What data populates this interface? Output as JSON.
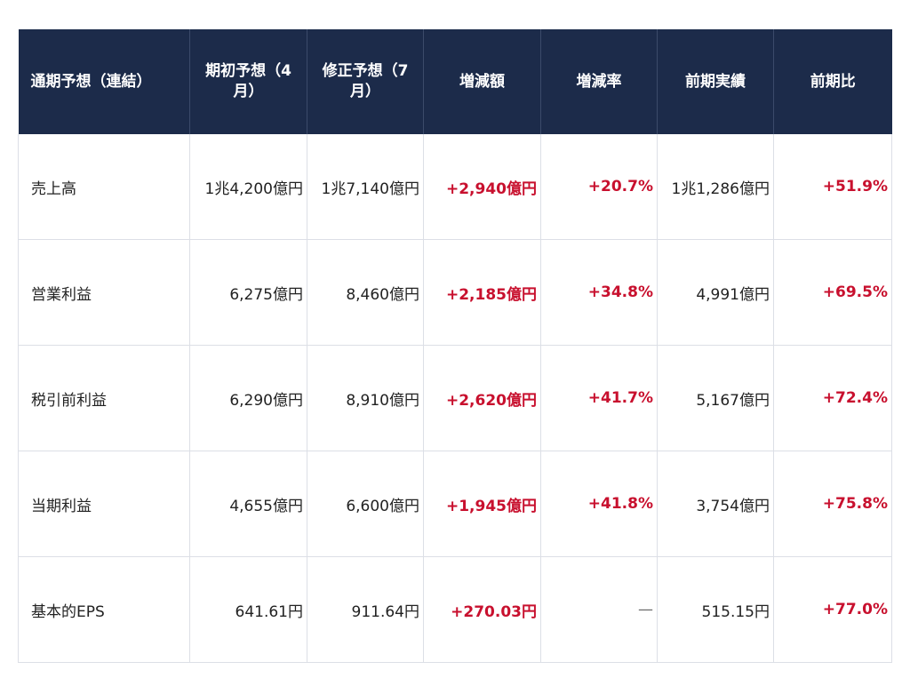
{
  "table": {
    "headers": [
      "通期予想（連結）",
      "期初予想（4月）",
      "修正予想（7月）",
      "増減額",
      "増減率",
      "前期実績",
      "前期比"
    ],
    "rows": [
      {
        "label": "売上高",
        "initial": "1兆4,200億円",
        "revised": "1兆7,140億円",
        "change": "+2,940億円",
        "rate": "+20.7%",
        "prev": "1兆1,286億円",
        "yoy": "+51.9%"
      },
      {
        "label": "営業利益",
        "initial": "6,275億円",
        "revised": "8,460億円",
        "change": "+2,185億円",
        "rate": "+34.8%",
        "prev": "4,991億円",
        "yoy": "+69.5%"
      },
      {
        "label": "税引前利益",
        "initial": "6,290億円",
        "revised": "8,910億円",
        "change": "+2,620億円",
        "rate": "+41.7%",
        "prev": "5,167億円",
        "yoy": "+72.4%"
      },
      {
        "label": "当期利益",
        "initial": "4,655億円",
        "revised": "6,600億円",
        "change": "+1,945億円",
        "rate": "+41.8%",
        "prev": "3,754億円",
        "yoy": "+75.8%"
      },
      {
        "label": "基本的EPS",
        "initial": "641.61円",
        "revised": "911.64円",
        "change": "+270.03円",
        "rate": "—",
        "prev": "515.15円",
        "yoy": "+77.0%"
      }
    ]
  },
  "colors": {
    "header_bg": "#1c2b4a",
    "header_text": "#ffffff",
    "positive": "#c8102e",
    "border": "#dcdfe6"
  }
}
